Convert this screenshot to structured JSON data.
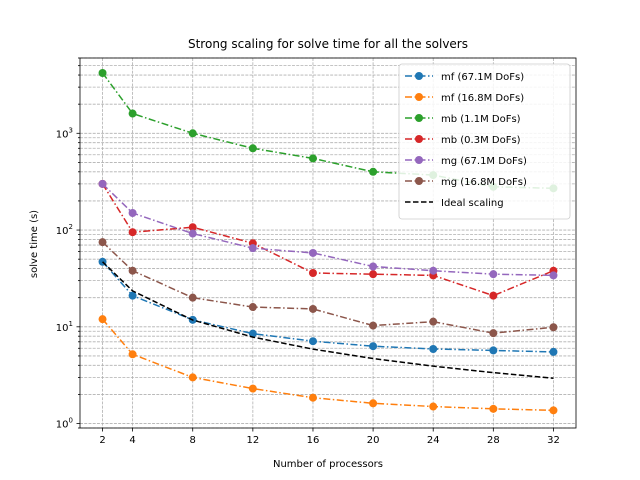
{
  "chart_data": {
    "type": "line",
    "title": "Strong scaling for solve time for all the solvers",
    "xlabel": "Number of processors",
    "ylabel": "solve time (s)",
    "xscale": "linear",
    "yscale": "log",
    "xlim": [
      0.5,
      33.5
    ],
    "ylim": [
      0.9,
      6000
    ],
    "grid": true,
    "grid_which": "both",
    "legend_position": "top-right",
    "x_ticks": [
      2,
      4,
      8,
      12,
      16,
      20,
      24,
      28,
      32
    ],
    "x_tick_labels": [
      "2",
      "4",
      "8",
      "12",
      "16",
      "20",
      "24",
      "28",
      "32"
    ],
    "y_ticks": [
      {
        "value": 1,
        "base": "10",
        "exp": "0"
      },
      {
        "value": 10,
        "base": "10",
        "exp": "1"
      },
      {
        "value": 100,
        "base": "10",
        "exp": "2"
      },
      {
        "value": 1000,
        "base": "10",
        "exp": "3"
      }
    ],
    "x": [
      2,
      4,
      8,
      12,
      16,
      20,
      24,
      28,
      32
    ],
    "series": [
      {
        "name": "mf (67.1M DoFs)",
        "color": "#1f77b4",
        "dash": "dashdot",
        "marker": true,
        "values": [
          47,
          21,
          11.8,
          8.5,
          7.1,
          6.3,
          5.9,
          5.7,
          5.5
        ]
      },
      {
        "name": "mf (16.8M DoFs)",
        "color": "#ff7f0e",
        "dash": "dashdot",
        "marker": true,
        "values": [
          12,
          5.2,
          3.0,
          2.3,
          1.85,
          1.62,
          1.5,
          1.42,
          1.37
        ]
      },
      {
        "name": "mb (1.1M DoFs)",
        "color": "#2ca02c",
        "dash": "dashdot",
        "marker": true,
        "values": [
          4200,
          1600,
          1000,
          700,
          550,
          400,
          370,
          280,
          270
        ]
      },
      {
        "name": "mb (0.3M DoFs)",
        "color": "#d62728",
        "dash": "dashdot",
        "marker": true,
        "values": [
          300,
          95,
          107,
          73,
          36,
          35,
          34,
          21,
          38
        ]
      },
      {
        "name": "mg (67.1M DoFs)",
        "color": "#9467bd",
        "dash": "dashdot",
        "marker": true,
        "values": [
          300,
          150,
          92,
          65,
          58,
          42,
          38,
          35,
          34
        ]
      },
      {
        "name": "mg (16.8M DoFs)",
        "color": "#8c564b",
        "dash": "dashdot",
        "marker": true,
        "values": [
          75,
          38,
          20,
          16,
          15.3,
          10.3,
          11.3,
          8.6,
          9.9
        ]
      },
      {
        "name": "Ideal scaling",
        "color": "#000000",
        "dash": "dashed",
        "marker": false,
        "values": [
          47,
          23.5,
          11.75,
          7.83,
          5.875,
          4.7,
          3.92,
          3.36,
          2.94
        ]
      }
    ]
  }
}
